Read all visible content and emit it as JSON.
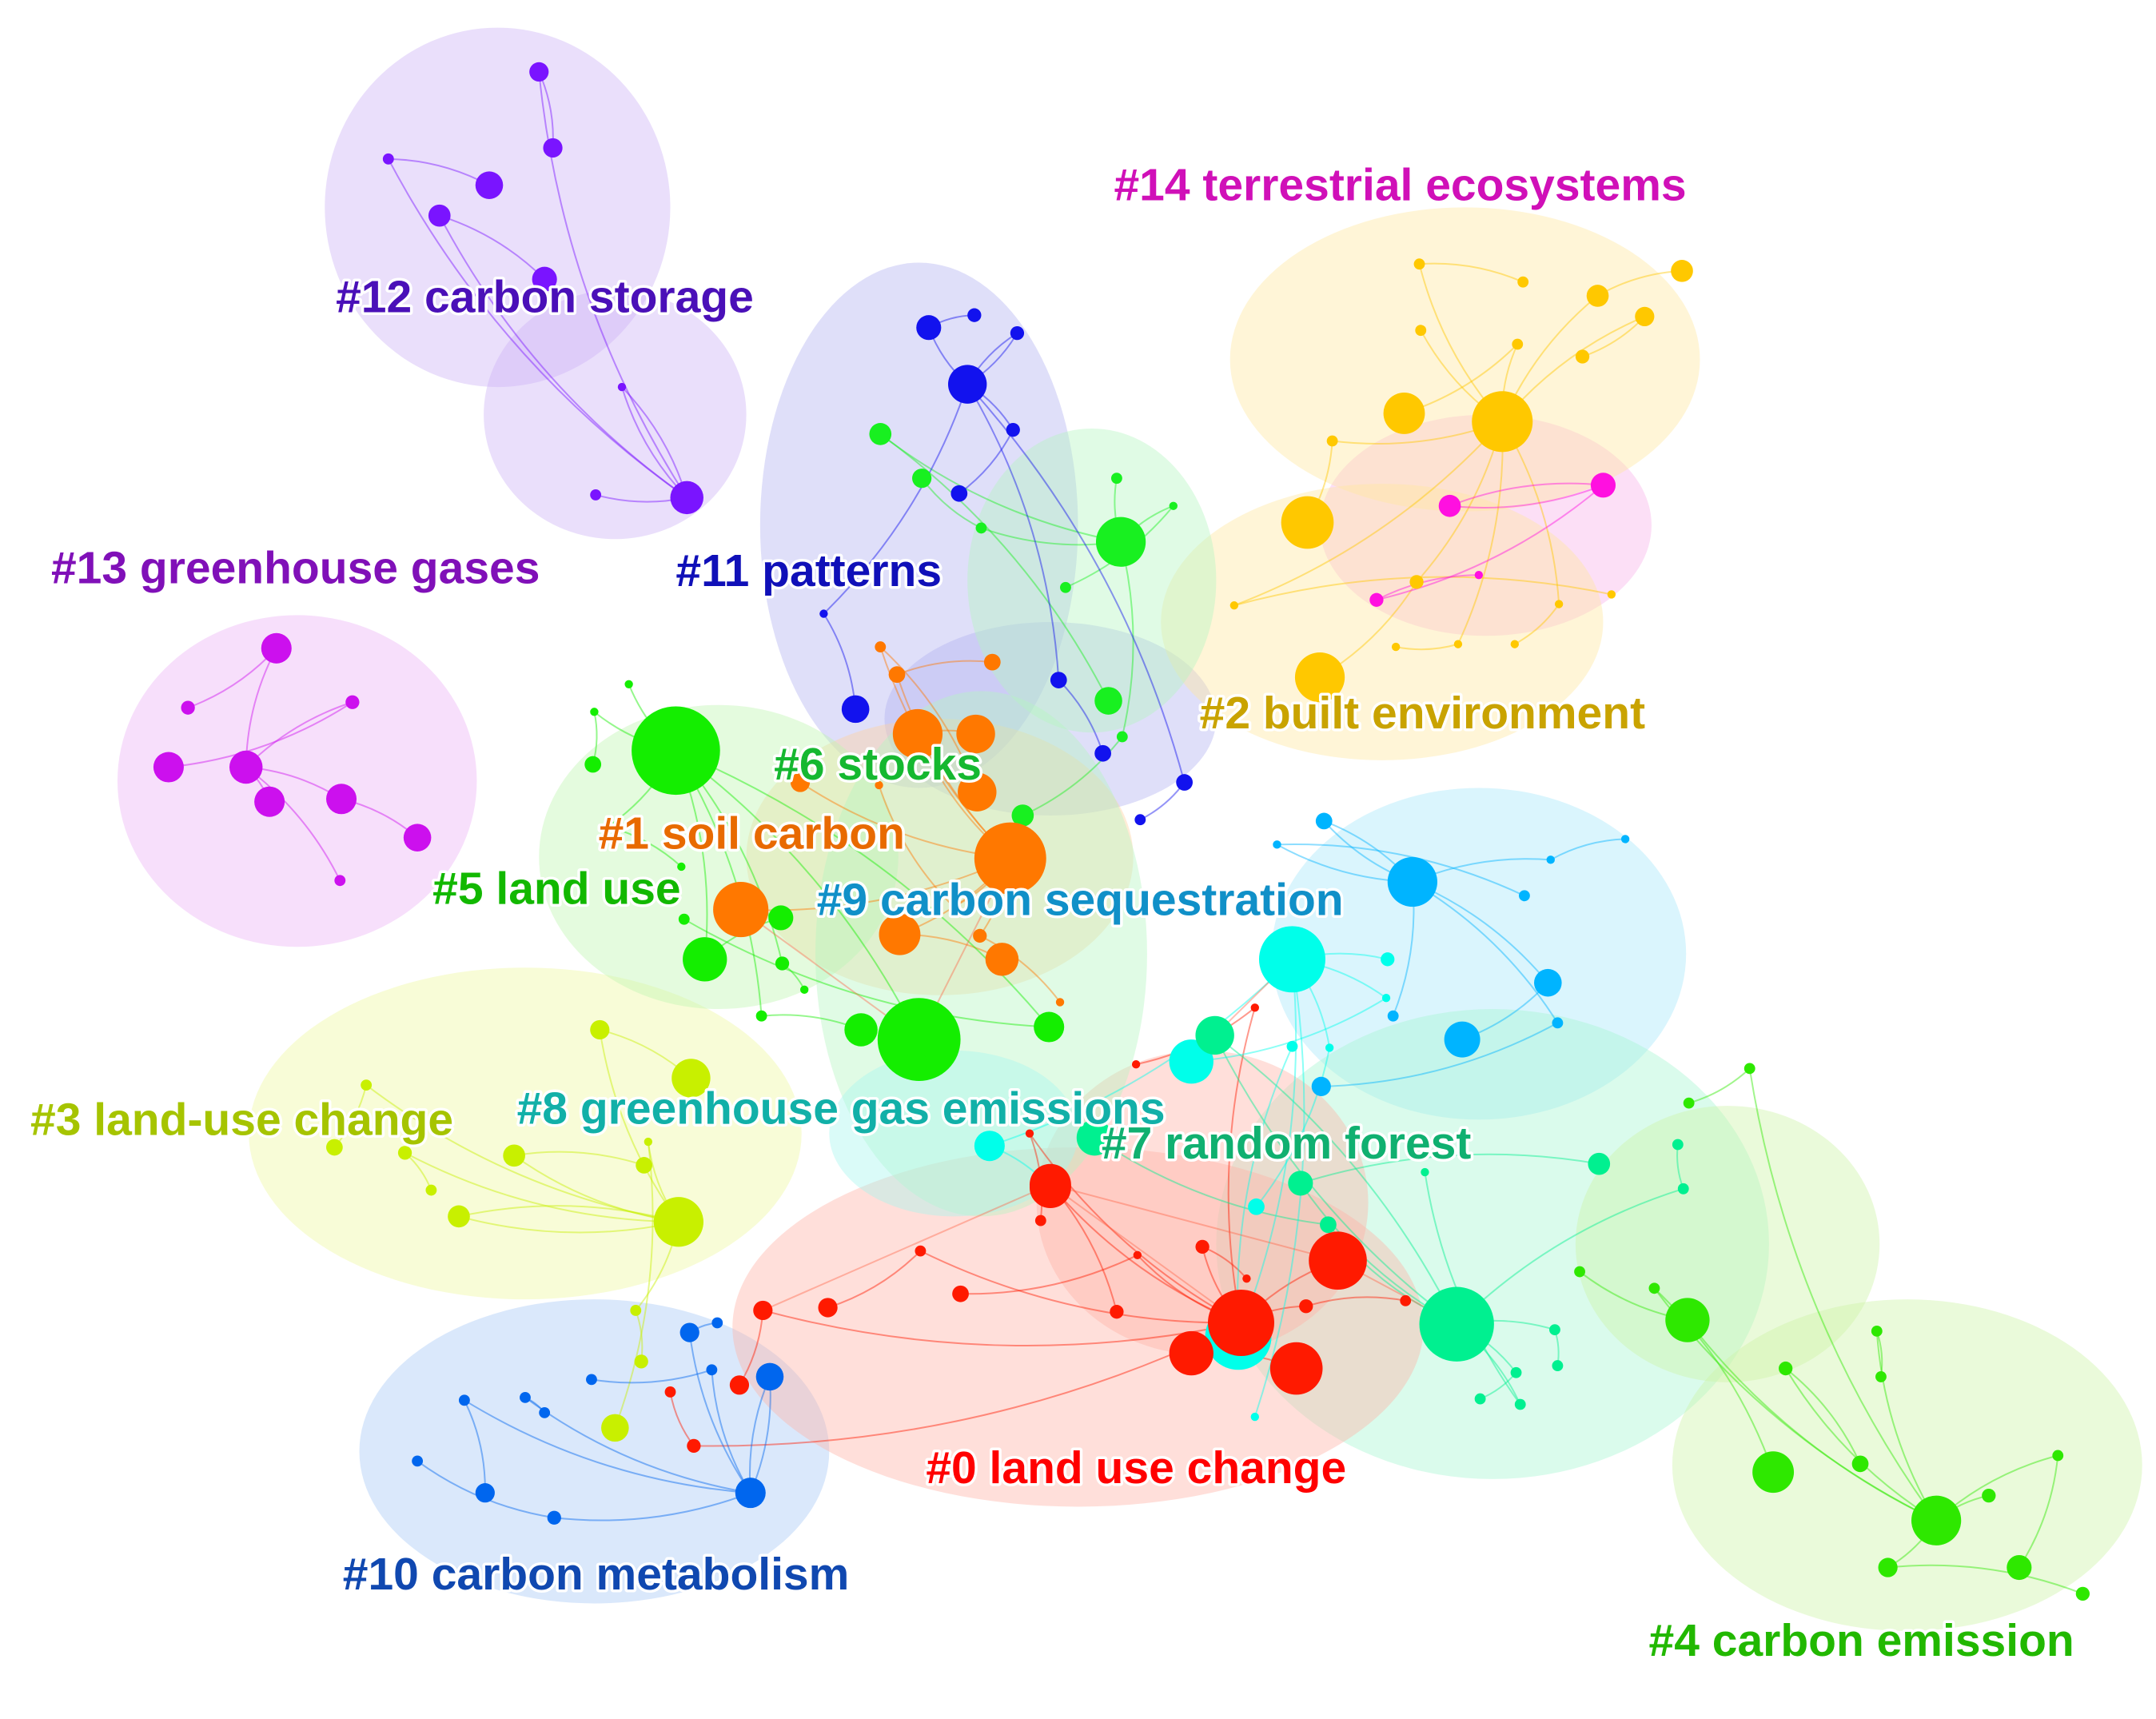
{
  "diagram": {
    "type": "co-citation cluster network",
    "clusters": [
      {
        "id": 0,
        "label": "#0 land use change",
        "color": "#ff0000"
      },
      {
        "id": 1,
        "label": "#1 soil carbon",
        "color": "#e86a00"
      },
      {
        "id": 2,
        "label": "#2 built environment",
        "color": "#c9a300"
      },
      {
        "id": 3,
        "label": "#3 land-use change",
        "color": "#a6c400"
      },
      {
        "id": 4,
        "label": "#4 carbon emission",
        "color": "#22b800"
      },
      {
        "id": 5,
        "label": "#5 land use",
        "color": "#12b800"
      },
      {
        "id": 6,
        "label": "#6 stocks",
        "color": "#15b830"
      },
      {
        "id": 7,
        "label": "#7 random forest",
        "color": "#10b070"
      },
      {
        "id": 8,
        "label": "#8 greenhouse gas emissions",
        "color": "#12b0a8"
      },
      {
        "id": 9,
        "label": "#9 carbon sequestration",
        "color": "#1090c8"
      },
      {
        "id": 10,
        "label": "#10 carbon metabolism",
        "color": "#1048b0"
      },
      {
        "id": 11,
        "label": "#11 patterns",
        "color": "#1010b8"
      },
      {
        "id": 12,
        "label": "#12 carbon storage",
        "color": "#4a10b8"
      },
      {
        "id": 13,
        "label": "#13 greenhouse gases",
        "color": "#8010b8"
      },
      {
        "id": 14,
        "label": "#14 terrestrial ecosystems",
        "color": "#d010b8"
      }
    ]
  }
}
